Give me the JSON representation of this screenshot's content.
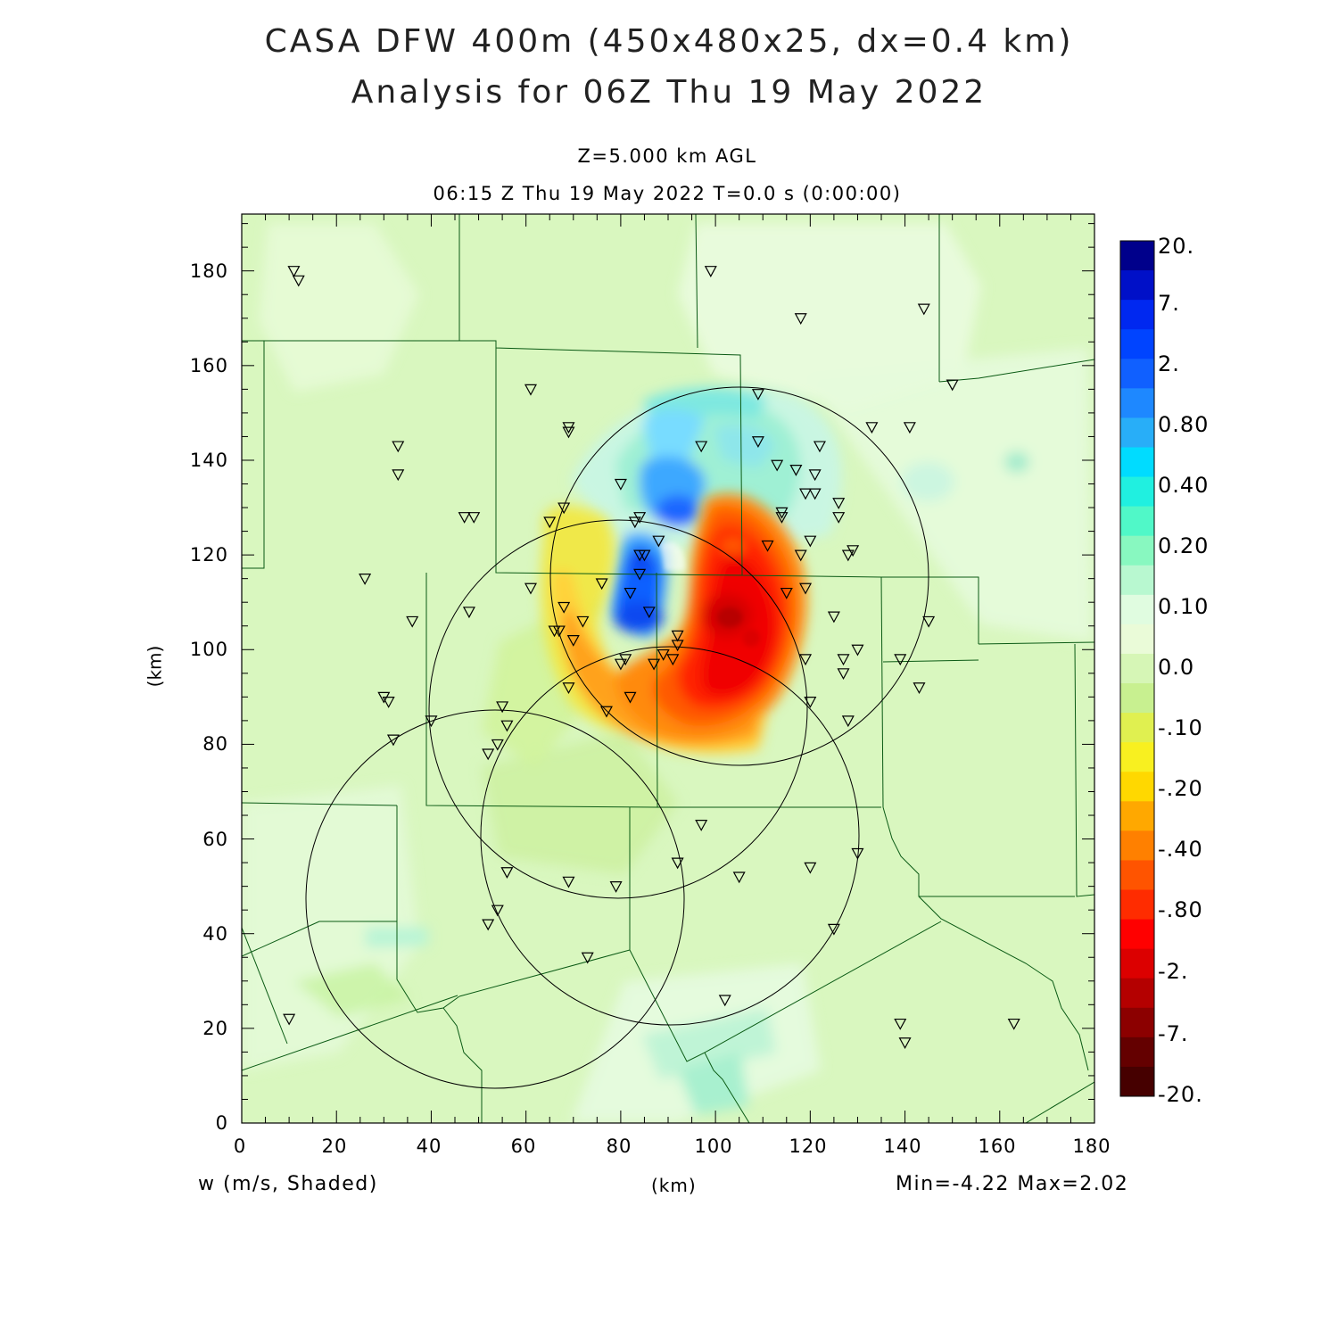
{
  "title": {
    "line1": "CASA DFW 400m (450x480x25, dx=0.4 km)",
    "line2": "Analysis for 06Z Thu 19 May 2022"
  },
  "subtitle": {
    "level": "Z=5.000 km AGL",
    "time": "06:15 Z Thu 19 May 2022    T=0.0 s (0:00:00)"
  },
  "axes": {
    "xlabel": "(km)",
    "ylabel": "(km)",
    "xticks": [
      "0",
      "20",
      "40",
      "60",
      "80",
      "100",
      "120",
      "140",
      "160",
      "180"
    ],
    "yticks": [
      "0",
      "20",
      "40",
      "60",
      "80",
      "100",
      "120",
      "140",
      "160",
      "180"
    ],
    "xrange": [
      0,
      180
    ],
    "yrange": [
      0,
      192
    ]
  },
  "variable_label": "w (m/s, Shaded)",
  "minmax_label": "Min=-4.22 Max=2.02",
  "colorbar": {
    "labels": [
      "20.",
      "7.",
      "2.",
      "0.80",
      "0.40",
      "0.20",
      "0.10",
      "0.0",
      "-.10",
      "-.20",
      "-.40",
      "-.80",
      "-2.",
      "-7.",
      "-20."
    ],
    "colors": [
      "#00008b",
      "#0010c8",
      "#0028f0",
      "#0044ff",
      "#1060ff",
      "#1e88ff",
      "#28aef8",
      "#00dcff",
      "#20f0e0",
      "#50f8c8",
      "#88f8c0",
      "#b8f8d0",
      "#e0fce0",
      "#eafbd8",
      "#d6f6b6",
      "#c8f090",
      "#e0f050",
      "#f8f020",
      "#ffd800",
      "#ffa800",
      "#ff8000",
      "#ff5400",
      "#ff2c00",
      "#ff0000",
      "#dc0000",
      "#b40000",
      "#8c0000",
      "#640000",
      "#460000"
    ]
  },
  "chart_data": {
    "type": "heatmap",
    "variable": "w",
    "units": "m/s",
    "level_km_agl": 5.0,
    "min": -4.22,
    "max": 2.02,
    "features": [
      {
        "kind": "downdraft",
        "center_km": [
          103,
          102
        ],
        "peak_w": -4.22
      },
      {
        "kind": "updraft",
        "center_km": [
          82,
          110
        ],
        "peak_w": 2.02
      },
      {
        "kind": "updraft",
        "center_km": [
          93,
          128
        ],
        "peak_w": 1.0
      },
      {
        "kind": "weak-updraft-arc",
        "center_km": [
          100,
          142
        ],
        "peak_w": 0.3
      }
    ],
    "radar_rings": [
      {
        "center_km": [
          105,
          115
        ],
        "radius_km": 40
      },
      {
        "center_km": [
          80,
          87
        ],
        "radius_km": 40
      },
      {
        "center_km": [
          92,
          61
        ],
        "radius_km": 40
      },
      {
        "center_km": [
          50,
          49
        ],
        "radius_km": 40
      }
    ],
    "stations_km": [
      [
        11,
        180
      ],
      [
        12,
        178
      ],
      [
        99,
        180
      ],
      [
        118,
        170
      ],
      [
        144,
        172
      ],
      [
        150,
        156
      ],
      [
        61,
        155
      ],
      [
        69,
        147
      ],
      [
        69,
        146
      ],
      [
        33,
        143
      ],
      [
        33,
        137
      ],
      [
        47,
        128
      ],
      [
        26,
        115
      ],
      [
        36,
        106
      ],
      [
        48,
        108
      ],
      [
        61,
        113
      ],
      [
        65,
        127
      ],
      [
        68,
        130
      ],
      [
        67,
        104
      ],
      [
        66,
        104
      ],
      [
        68,
        109
      ],
      [
        70,
        102
      ],
      [
        72,
        106
      ],
      [
        76,
        114
      ],
      [
        80,
        135
      ],
      [
        83,
        127
      ],
      [
        84,
        128
      ],
      [
        84,
        120
      ],
      [
        84,
        116
      ],
      [
        85,
        120
      ],
      [
        88,
        123
      ],
      [
        86,
        108
      ],
      [
        82,
        112
      ],
      [
        97,
        143
      ],
      [
        109,
        154
      ],
      [
        109,
        144
      ],
      [
        113,
        139
      ],
      [
        114,
        129
      ],
      [
        114,
        128
      ],
      [
        111,
        122
      ],
      [
        117,
        138
      ],
      [
        118,
        120
      ],
      [
        119,
        113
      ],
      [
        119,
        133
      ],
      [
        120,
        123
      ],
      [
        121,
        137
      ],
      [
        121,
        133
      ],
      [
        122,
        143
      ],
      [
        126,
        131
      ],
      [
        126,
        128
      ],
      [
        129,
        121
      ],
      [
        128,
        120
      ],
      [
        133,
        147
      ],
      [
        141,
        147
      ],
      [
        145,
        106
      ],
      [
        139,
        98
      ],
      [
        143,
        92
      ],
      [
        125,
        107
      ],
      [
        127,
        98
      ],
      [
        127,
        95
      ],
      [
        130,
        100
      ],
      [
        128,
        85
      ],
      [
        119,
        98
      ],
      [
        120,
        89
      ],
      [
        115,
        112
      ],
      [
        91,
        98
      ],
      [
        92,
        101
      ],
      [
        92,
        103
      ],
      [
        89,
        99
      ],
      [
        87,
        97
      ],
      [
        81,
        98
      ],
      [
        80,
        97
      ],
      [
        82,
        90
      ],
      [
        77,
        87
      ],
      [
        69,
        92
      ],
      [
        30,
        90
      ],
      [
        31,
        89
      ],
      [
        32,
        81
      ],
      [
        40,
        85
      ],
      [
        55,
        88
      ],
      [
        56,
        84
      ],
      [
        54,
        80
      ],
      [
        52,
        78
      ],
      [
        49,
        128
      ],
      [
        56,
        53
      ],
      [
        69,
        51
      ],
      [
        79,
        50
      ],
      [
        92,
        55
      ],
      [
        97,
        63
      ],
      [
        105,
        52
      ],
      [
        120,
        54
      ],
      [
        130,
        57
      ],
      [
        125,
        41
      ],
      [
        54,
        45
      ],
      [
        52,
        42
      ],
      [
        73,
        35
      ],
      [
        102,
        26
      ],
      [
        139,
        21
      ],
      [
        140,
        17
      ],
      [
        163,
        21
      ],
      [
        10,
        22
      ]
    ],
    "county_boundaries": "shown",
    "grid": false
  }
}
